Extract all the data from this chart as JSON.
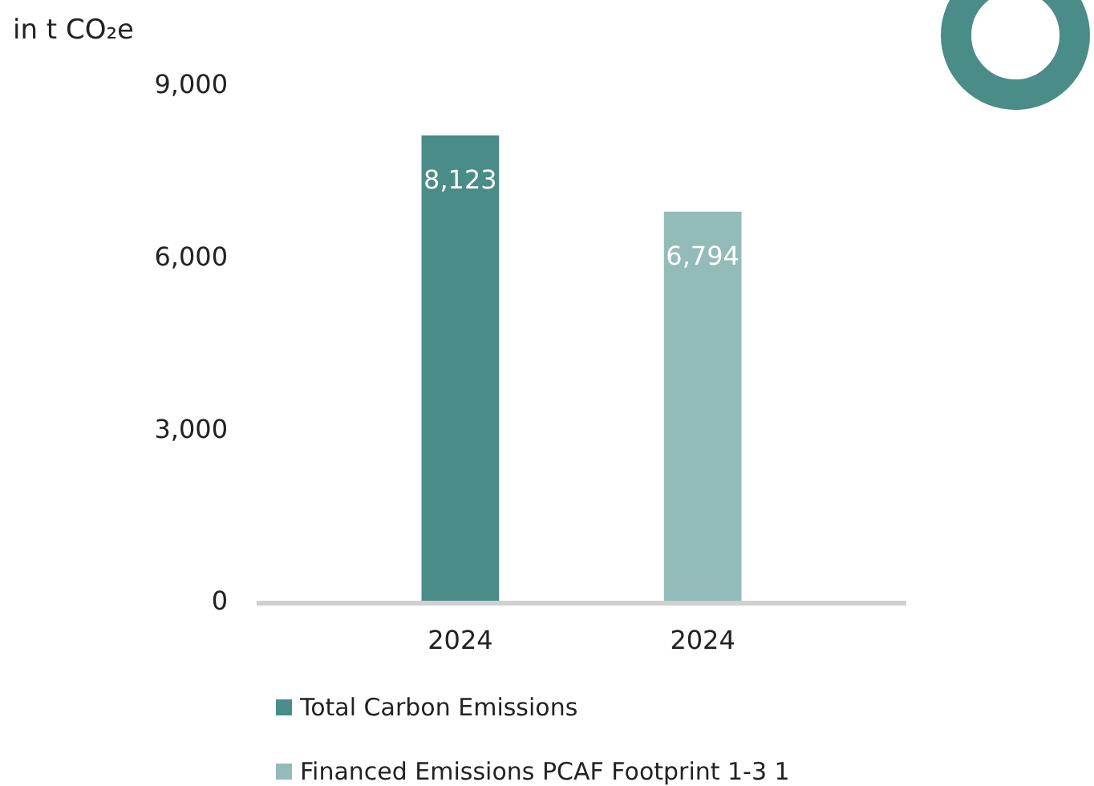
{
  "chart_data": {
    "type": "bar",
    "ylabel": "in t CO₂e",
    "categories": [
      "2024",
      "2024"
    ],
    "series": [
      {
        "name": "Total Carbon Emissions",
        "color": "#4a8c87",
        "values": [
          8123,
          null
        ],
        "value_labels": [
          "8,123",
          null
        ]
      },
      {
        "name": "Financed Emissions PCAF Footprint 1-3 1",
        "color": "#93bbb8",
        "values": [
          null,
          6794
        ],
        "value_labels": [
          null,
          "6,794"
        ]
      }
    ],
    "ylim": [
      0,
      9000
    ],
    "yticks": [
      {
        "value": 0,
        "label": "0"
      },
      {
        "value": 3000,
        "label": "3,000"
      },
      {
        "value": 6000,
        "label": "6,000"
      },
      {
        "value": 9000,
        "label": "9,000"
      }
    ],
    "legend": "bottom",
    "grid": false
  }
}
